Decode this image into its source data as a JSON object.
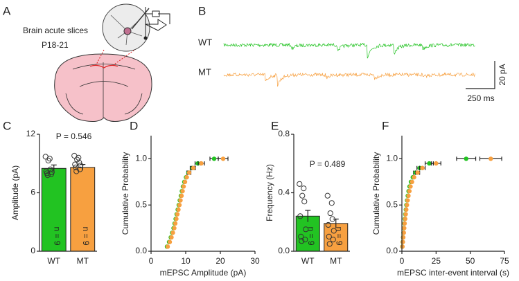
{
  "panels": [
    "A",
    "B",
    "C",
    "D",
    "E",
    "F"
  ],
  "diagram": {
    "slice_label": "Brain acute slices",
    "age_label": "P18-21"
  },
  "traces": {
    "labels": [
      "WT",
      "MT"
    ],
    "colors": [
      "#22c322",
      "#f7a040"
    ],
    "scale_y": "20 pA",
    "scale_x": "250 ms"
  },
  "chart_data": [
    {
      "type": "bar",
      "ylabel": "Amplitude (pA)",
      "annotation": "P = 0.546",
      "categories": [
        "WT",
        "MT"
      ],
      "values": [
        8.5,
        8.6
      ],
      "errors": [
        0.35,
        0.3
      ],
      "colors": [
        "#22c322",
        "#f7a040"
      ],
      "points": [
        [
          9.7,
          9.5,
          9.3,
          8.4,
          8.2,
          8.1,
          8.0,
          7.9,
          7.8
        ],
        [
          9.8,
          9.6,
          9.4,
          9.1,
          8.9,
          8.8,
          8.6,
          8.4,
          8.2
        ]
      ],
      "n_labels": [
        "n = 9",
        "n = 9"
      ],
      "ylim": [
        0,
        12
      ],
      "yticks": [
        0,
        6,
        12
      ]
    },
    {
      "type": "scatter",
      "xlabel": "mEPSC Amplitude (pA)",
      "ylabel": "Cumulative Probability",
      "series": [
        {
          "color": "#22c322",
          "x": [
            4.6,
            5.2,
            5.7,
            6.1,
            6.5,
            6.8,
            7.1,
            7.4,
            7.7,
            8.0,
            8.3,
            8.6,
            8.9,
            9.2,
            9.6,
            10.1,
            10.8,
            11.9,
            13.5,
            18.2
          ],
          "y": [
            0.05,
            0.1,
            0.15,
            0.2,
            0.25,
            0.3,
            0.35,
            0.4,
            0.45,
            0.5,
            0.55,
            0.6,
            0.65,
            0.7,
            0.75,
            0.8,
            0.85,
            0.9,
            0.95,
            1.0
          ],
          "xerr": [
            null,
            null,
            null,
            null,
            null,
            null,
            null,
            null,
            null,
            null,
            null,
            null,
            null,
            null,
            null,
            null,
            0.5,
            0.6,
            0.8,
            1.2
          ]
        },
        {
          "color": "#f7a040",
          "x": [
            4.8,
            5.4,
            5.9,
            6.3,
            6.7,
            7.0,
            7.3,
            7.6,
            7.9,
            8.2,
            8.5,
            8.8,
            9.1,
            9.4,
            9.8,
            10.3,
            11.0,
            12.2,
            14.5,
            20.8
          ],
          "y": [
            0.05,
            0.1,
            0.15,
            0.2,
            0.25,
            0.3,
            0.35,
            0.4,
            0.45,
            0.5,
            0.55,
            0.6,
            0.65,
            0.7,
            0.75,
            0.8,
            0.85,
            0.9,
            0.95,
            1.0
          ],
          "xerr": [
            null,
            null,
            null,
            null,
            null,
            null,
            null,
            null,
            null,
            null,
            null,
            null,
            null,
            null,
            null,
            null,
            0.5,
            0.6,
            0.9,
            1.4
          ]
        }
      ],
      "xlim": [
        0,
        30
      ],
      "xticks": [
        0,
        10,
        20,
        30
      ],
      "ylim": [
        0,
        1.25
      ],
      "yticks": [
        {
          "value": 0,
          "label": "0.0"
        },
        {
          "value": 0.5,
          "label": "0.5"
        },
        {
          "value": 1,
          "label": "1.0"
        }
      ]
    },
    {
      "type": "bar",
      "ylabel": "Frequency (Hz)",
      "annotation": "P = 0.489",
      "categories": [
        "WT",
        "MT"
      ],
      "values": [
        0.24,
        0.19
      ],
      "errors": [
        0.04,
        0.03
      ],
      "colors": [
        "#22c322",
        "#f7a040"
      ],
      "points": [
        [
          0.46,
          0.43,
          0.38,
          0.34,
          0.24,
          0.15,
          0.1,
          0.08,
          0.07
        ],
        [
          0.38,
          0.33,
          0.26,
          0.22,
          0.18,
          0.14,
          0.1,
          0.08,
          0.05
        ]
      ],
      "n_labels": [
        "n = 9",
        "n = 9"
      ],
      "ylim": [
        0,
        0.8
      ],
      "yticks": [
        {
          "value": 0,
          "label": "0.0"
        },
        {
          "value": 0.4,
          "label": "0.4"
        },
        {
          "value": 0.8,
          "label": "0.8"
        }
      ]
    },
    {
      "type": "scatter",
      "xlabel": "mEPSC inter-event interval (s)",
      "ylabel": "Cumulative Probability",
      "series": [
        {
          "color": "#22c322",
          "x": [
            0.3,
            0.6,
            0.9,
            1.2,
            1.5,
            1.8,
            2.1,
            2.5,
            2.9,
            3.3,
            3.8,
            4.3,
            4.9,
            5.6,
            6.6,
            8.0,
            10.0,
            13.0,
            20.0,
            47.0
          ],
          "y": [
            0.05,
            0.1,
            0.15,
            0.2,
            0.25,
            0.3,
            0.35,
            0.4,
            0.45,
            0.5,
            0.55,
            0.6,
            0.65,
            0.7,
            0.75,
            0.8,
            0.85,
            0.9,
            0.95,
            1.0
          ],
          "xerr": [
            null,
            null,
            null,
            null,
            null,
            null,
            null,
            null,
            null,
            null,
            null,
            null,
            null,
            null,
            null,
            null,
            1.5,
            2,
            3,
            7
          ]
        },
        {
          "color": "#f7a040",
          "x": [
            0.4,
            0.7,
            1.0,
            1.4,
            1.7,
            2.0,
            2.4,
            2.8,
            3.2,
            3.7,
            4.2,
            4.8,
            5.5,
            6.3,
            7.4,
            8.9,
            11.5,
            15.0,
            25.0,
            65.0
          ],
          "y": [
            0.05,
            0.1,
            0.15,
            0.2,
            0.25,
            0.3,
            0.35,
            0.4,
            0.45,
            0.5,
            0.55,
            0.6,
            0.65,
            0.7,
            0.75,
            0.8,
            0.85,
            0.9,
            0.95,
            1.0
          ],
          "xerr": [
            null,
            null,
            null,
            null,
            null,
            null,
            null,
            null,
            null,
            null,
            null,
            null,
            null,
            null,
            null,
            null,
            1.5,
            2,
            3.5,
            8
          ]
        }
      ],
      "xlim": [
        0,
        75
      ],
      "xticks": [
        0,
        25,
        50,
        75
      ],
      "ylim": [
        0,
        1.25
      ],
      "yticks": [
        {
          "value": 0,
          "label": "0.0"
        },
        {
          "value": 0.5,
          "label": "0.5"
        },
        {
          "value": 1,
          "label": "1.0"
        }
      ]
    }
  ]
}
